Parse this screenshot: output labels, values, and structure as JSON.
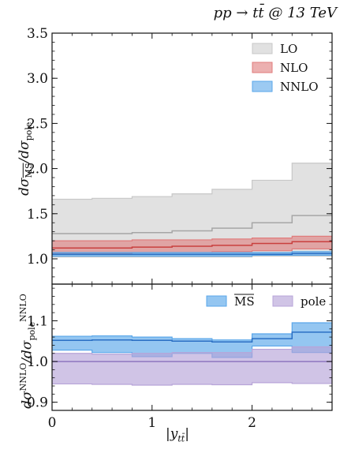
{
  "page": {
    "title": "pp → tt̄ @ 13 TeV",
    "xlabel": "|ytt̄|",
    "top_ylabel": "dσMS/dσpole",
    "bottom_ylabel": "dσNNLO/dσpoleNNLO"
  },
  "colors": {
    "LO": "#c8c8c8",
    "NLO": "#e07b7b",
    "NNLO": "#5aa7ea",
    "MSbar": "#5aa7ea",
    "pole": "#b7a4d8"
  },
  "chart_data": [
    {
      "type": "area",
      "title": "pp → tt̄ @ 13 TeV",
      "xlabel": "|ytt̄|",
      "ylabel": "dσMS/dσpole",
      "xlim": [
        0,
        2.8
      ],
      "ylim": [
        0.72,
        3.5
      ],
      "yticks": [
        "1.0",
        "1.5",
        "2.0",
        "2.5",
        "3.0",
        "3.5"
      ],
      "xticks": [
        "0",
        "1",
        "2"
      ],
      "legend_position": "top-right",
      "bin_edges": [
        0,
        0.4,
        0.8,
        1.2,
        1.6,
        2.0,
        2.4,
        2.8
      ],
      "series": [
        {
          "name": "LO",
          "central": [
            1.28,
            1.28,
            1.29,
            1.31,
            1.34,
            1.4,
            1.48
          ],
          "low": [
            1.02,
            1.02,
            1.02,
            1.02,
            1.02,
            1.03,
            1.03
          ],
          "high": [
            1.66,
            1.67,
            1.69,
            1.72,
            1.77,
            1.87,
            2.06
          ]
        },
        {
          "name": "NLO",
          "central": [
            1.12,
            1.12,
            1.13,
            1.14,
            1.15,
            1.17,
            1.19
          ],
          "low": [
            1.06,
            1.06,
            1.07,
            1.07,
            1.08,
            1.09,
            1.11
          ],
          "high": [
            1.2,
            1.2,
            1.21,
            1.21,
            1.22,
            1.23,
            1.25
          ]
        },
        {
          "name": "NNLO",
          "central": [
            1.05,
            1.05,
            1.05,
            1.05,
            1.05,
            1.05,
            1.06
          ],
          "low": [
            1.03,
            1.03,
            1.03,
            1.03,
            1.03,
            1.04,
            1.04
          ],
          "high": [
            1.07,
            1.07,
            1.07,
            1.07,
            1.07,
            1.07,
            1.08
          ]
        }
      ]
    },
    {
      "type": "area",
      "xlabel": "|ytt̄|",
      "ylabel": "dσNNLO/dσpoleNNLO",
      "xlim": [
        0,
        2.8
      ],
      "ylim": [
        0.88,
        1.19
      ],
      "yticks": [
        "0.9",
        "1.0",
        "1.1"
      ],
      "xticks": [
        "0",
        "1",
        "2"
      ],
      "legend_position": "top-right",
      "bin_edges": [
        0,
        0.4,
        0.8,
        1.2,
        1.6,
        2.0,
        2.4,
        2.8
      ],
      "series": [
        {
          "name": "MS",
          "central": [
            1.052,
            1.053,
            1.052,
            1.05,
            1.048,
            1.056,
            1.072
          ],
          "low": [
            1.028,
            1.022,
            1.012,
            1.02,
            1.01,
            1.038,
            1.022
          ],
          "high": [
            1.062,
            1.063,
            1.06,
            1.056,
            1.053,
            1.068,
            1.095
          ]
        },
        {
          "name": "pole",
          "central": [
            1.0,
            1.0,
            1.0,
            1.0,
            1.0,
            1.0,
            1.0
          ],
          "low": [
            0.945,
            0.944,
            0.942,
            0.944,
            0.943,
            0.948,
            0.946
          ],
          "high": [
            1.02,
            1.018,
            1.02,
            1.022,
            1.022,
            1.03,
            1.036
          ]
        }
      ]
    }
  ]
}
